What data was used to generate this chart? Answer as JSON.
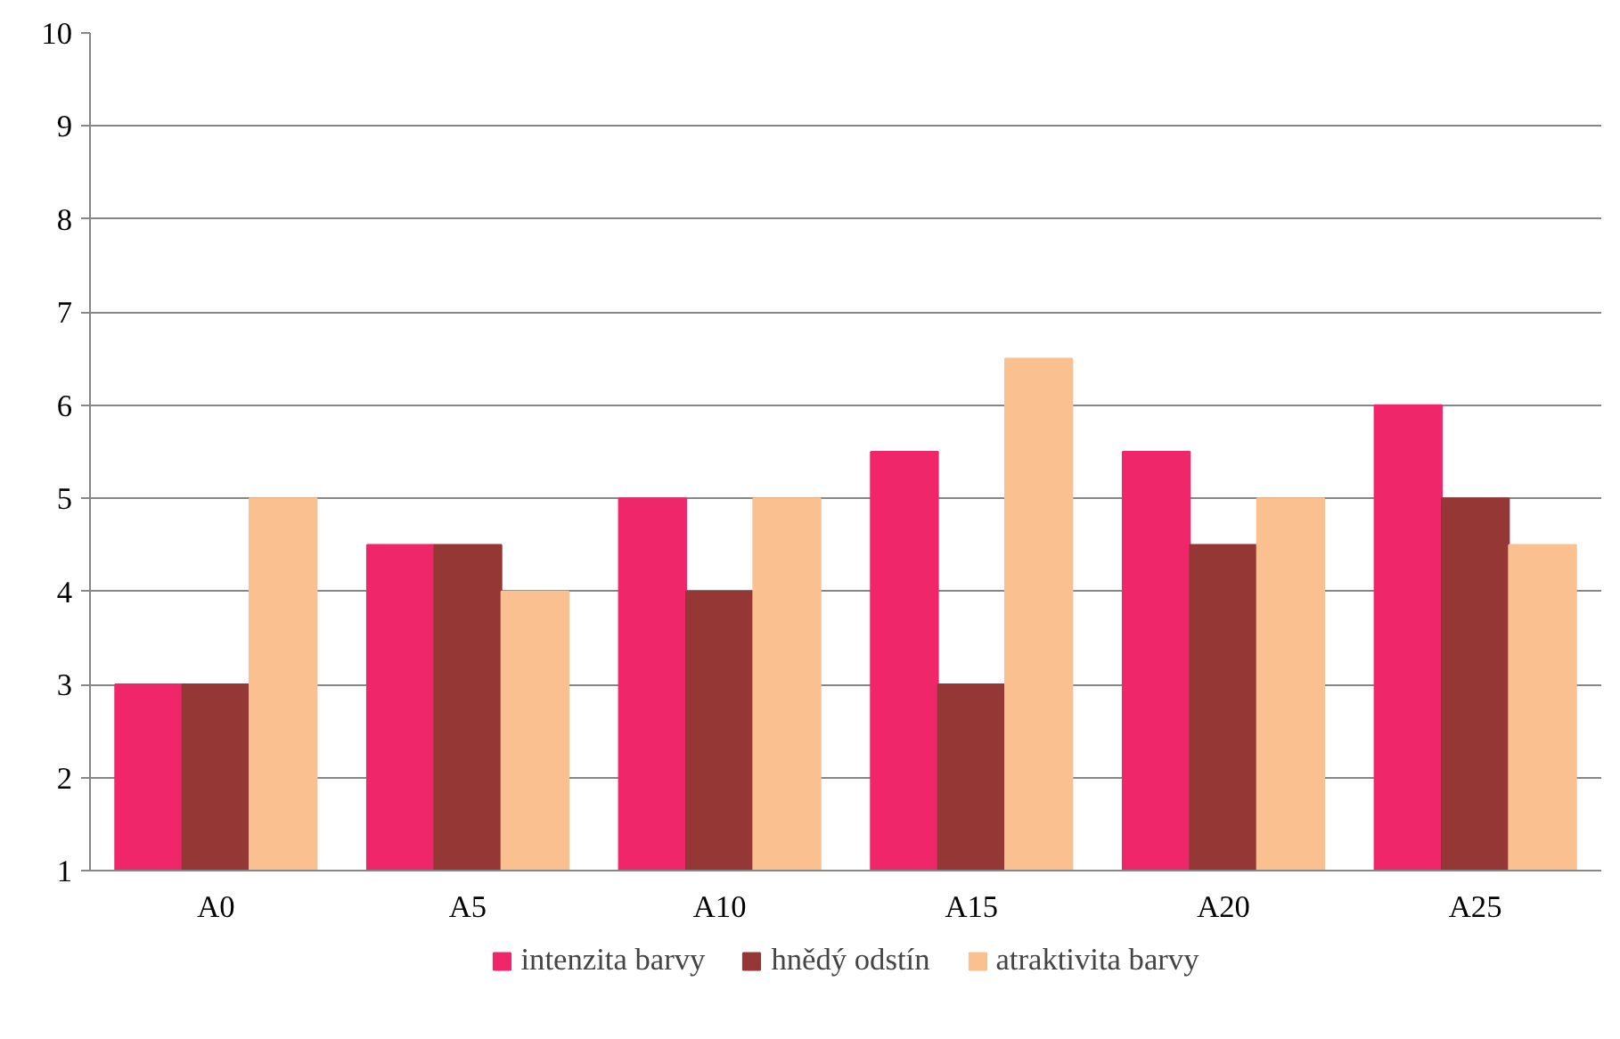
{
  "chart_data": {
    "type": "bar",
    "categories": [
      "A0",
      "A5",
      "A10",
      "A15",
      "A20",
      "A25"
    ],
    "series": [
      {
        "name": "intenzita barvy",
        "color": "#f0266b",
        "values": [
          3,
          4.5,
          5,
          5.5,
          5.5,
          6
        ]
      },
      {
        "name": "hnědý odstín",
        "color": "#953735",
        "values": [
          3,
          4.5,
          4,
          3,
          4.5,
          5
        ]
      },
      {
        "name": "atraktivita barvy",
        "color": "#fac090",
        "values": [
          5,
          4,
          5,
          6.5,
          5,
          4.5
        ]
      }
    ],
    "ylim": [
      1,
      10
    ],
    "yticks": [
      1,
      2,
      3,
      4,
      5,
      6,
      7,
      8,
      9,
      10
    ],
    "grid": "y",
    "legend": "bottom"
  }
}
